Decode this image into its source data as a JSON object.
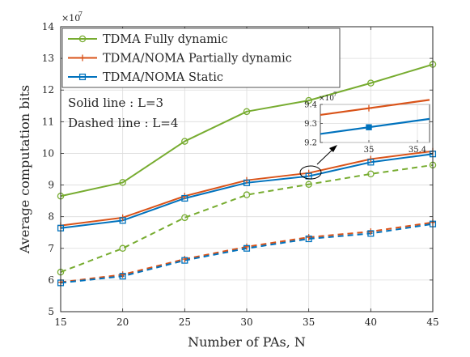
{
  "chart_data": {
    "type": "line",
    "title": "",
    "xlabel": "Number of PAs, N",
    "ylabel": "Average computation bits",
    "y_exponent_label": "×10",
    "y_exponent_power": "7",
    "xlim": [
      15,
      45
    ],
    "ylim": [
      5,
      14
    ],
    "xticks": [
      "15",
      "20",
      "25",
      "30",
      "35",
      "40",
      "45"
    ],
    "yticks": [
      "5",
      "6",
      "7",
      "8",
      "9",
      "10",
      "11",
      "12",
      "13",
      "14"
    ],
    "grid": true,
    "legend_position": "top-left",
    "x": [
      15,
      20,
      25,
      30,
      35,
      40,
      45
    ],
    "series": [
      {
        "name": "TDMA Fully dynamic",
        "color": "#77ac30",
        "marker": "circle",
        "line": "solid",
        "values": [
          8.65,
          9.08,
          10.38,
          11.32,
          11.67,
          12.22,
          12.81
        ]
      },
      {
        "name": "TDMA/NOMA Partially dynamic",
        "color": "#d95319",
        "marker": "plus",
        "line": "solid",
        "values": [
          7.72,
          7.97,
          8.65,
          9.15,
          9.38,
          9.82,
          10.07
        ]
      },
      {
        "name": "TDMA/NOMA Static",
        "color": "#0072bd",
        "marker": "square",
        "line": "solid",
        "values": [
          7.64,
          7.88,
          8.58,
          9.07,
          9.28,
          9.72,
          9.98
        ]
      },
      {
        "name": "",
        "color": "#77ac30",
        "marker": "circle",
        "line": "dashed",
        "values": [
          6.25,
          7.0,
          7.97,
          8.69,
          9.02,
          9.35,
          9.63
        ]
      },
      {
        "name": "",
        "color": "#d95319",
        "marker": "plus",
        "line": "dashed",
        "values": [
          5.93,
          6.17,
          6.66,
          7.05,
          7.35,
          7.53,
          7.82
        ]
      },
      {
        "name": "",
        "color": "#0072bd",
        "marker": "square",
        "line": "dashed",
        "values": [
          5.91,
          6.12,
          6.62,
          7.0,
          7.3,
          7.47,
          7.77
        ]
      }
    ],
    "annotations": {
      "solid_line_text": "Solid line : L=3",
      "dashed_line_text": "Dashed line : L=4"
    },
    "inset": {
      "xlim": [
        34.6,
        35.5
      ],
      "ylim": [
        9.2,
        9.4
      ],
      "xticks": [
        "35",
        "35.4"
      ],
      "yticks": [
        "9.2",
        "9.3",
        "9.4"
      ],
      "exponent_label": "×10",
      "exponent_power": "7"
    }
  }
}
